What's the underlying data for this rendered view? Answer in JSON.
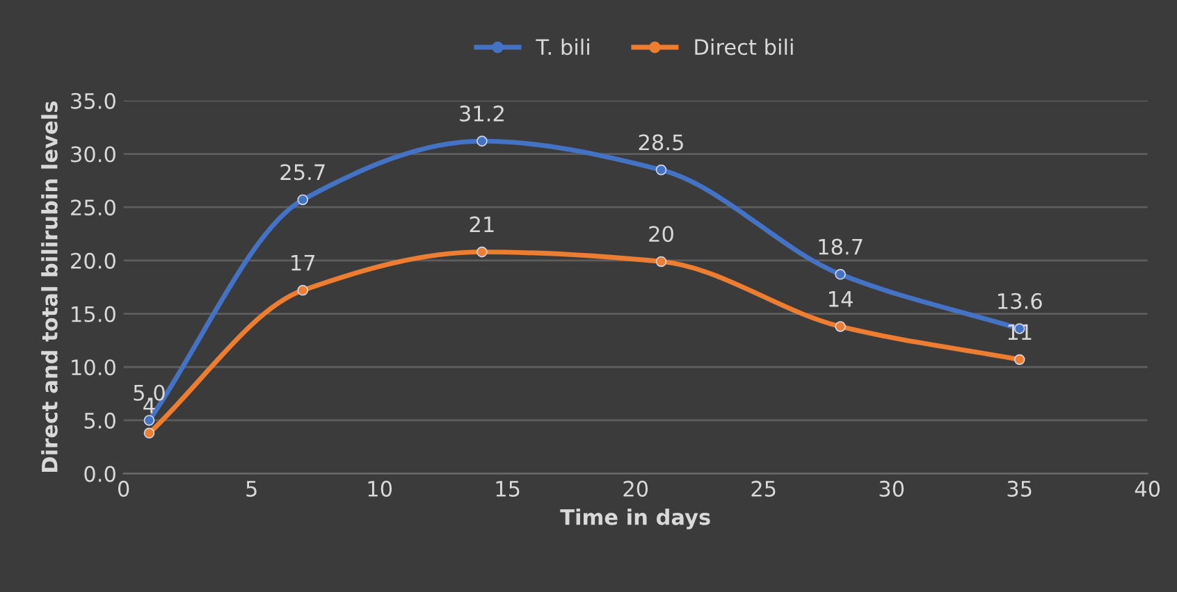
{
  "chart_data": {
    "type": "line",
    "x": [
      1,
      7,
      14,
      21,
      28,
      35
    ],
    "series": [
      {
        "name": "T. bili",
        "color": "#4472c4",
        "values": [
          5.0,
          25.7,
          31.2,
          28.5,
          18.7,
          13.6
        ],
        "value_labels": [
          "5.0",
          "25.7",
          "31.2",
          "28.5",
          "18.7",
          "13.6"
        ]
      },
      {
        "name": "Direct bili",
        "color": "#ed7d31",
        "values": [
          3.8,
          17.2,
          20.8,
          19.9,
          13.8,
          10.7
        ],
        "value_labels": [
          "4",
          "17",
          "21",
          "20",
          "14",
          "11"
        ]
      }
    ],
    "xlabel": "Time in days",
    "ylabel": "Direct and total bilirubin levels",
    "xlim": [
      0,
      40
    ],
    "xticks": [
      0,
      5,
      10,
      15,
      20,
      25,
      30,
      35,
      40
    ],
    "ylim": [
      0,
      35
    ],
    "yticks": [
      {
        "value": 0,
        "label": "0.0"
      },
      {
        "value": 5,
        "label": "5.0"
      },
      {
        "value": 10,
        "label": "10.0"
      },
      {
        "value": 15,
        "label": "15.0"
      },
      {
        "value": 20,
        "label": "20.0"
      },
      {
        "value": 25,
        "label": "25.0"
      },
      {
        "value": 30,
        "label": "30.0"
      },
      {
        "value": 35,
        "label": "35.0"
      }
    ],
    "grid": "y",
    "legend": "top",
    "marker": "circle",
    "line_style": "solid"
  }
}
